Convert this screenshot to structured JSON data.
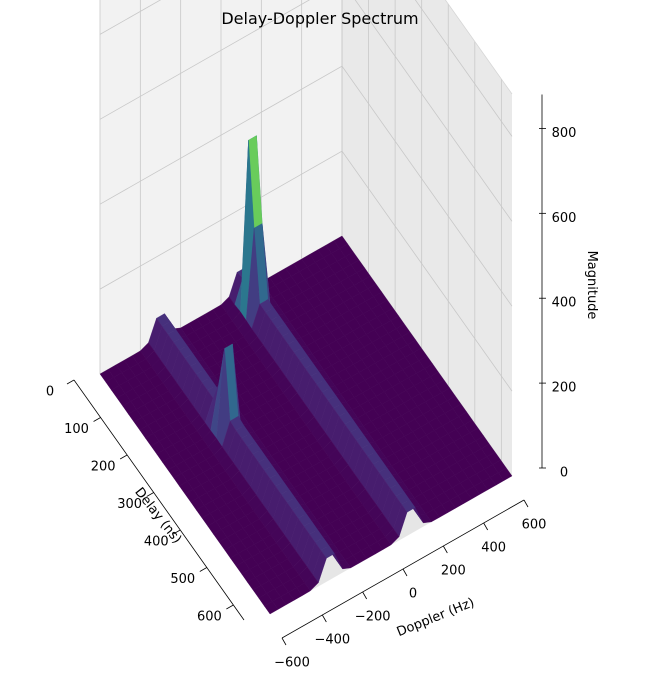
{
  "chart_data": {
    "type": "surface3d",
    "title": "Delay-Doppler Spectrum",
    "xlabel": "Doppler (Hz)",
    "ylabel": "Delay (ns)",
    "zlabel": "Magnitude",
    "xlim": [
      -600,
      600
    ],
    "ylim": [
      0,
      640
    ],
    "zlim": [
      0,
      900
    ],
    "xticks": [
      -600,
      -400,
      -200,
      0,
      200,
      400,
      600
    ],
    "yticks": [
      0,
      100,
      200,
      300,
      400,
      500,
      600
    ],
    "zticks": [
      0,
      200,
      400,
      600,
      800
    ],
    "colormap": "viridis",
    "grid": true,
    "grid_size": [
      30,
      30
    ],
    "peaks": [
      {
        "doppler": 100,
        "delay": 50,
        "magnitude": 870
      },
      {
        "doppler": -300,
        "delay": 250,
        "magnitude": 350
      }
    ],
    "ridges": [
      {
        "along": "delay",
        "doppler": 100,
        "magnitude": 70
      },
      {
        "along": "delay",
        "doppler": -300,
        "magnitude": 70
      }
    ],
    "floor_magnitude": 0
  }
}
